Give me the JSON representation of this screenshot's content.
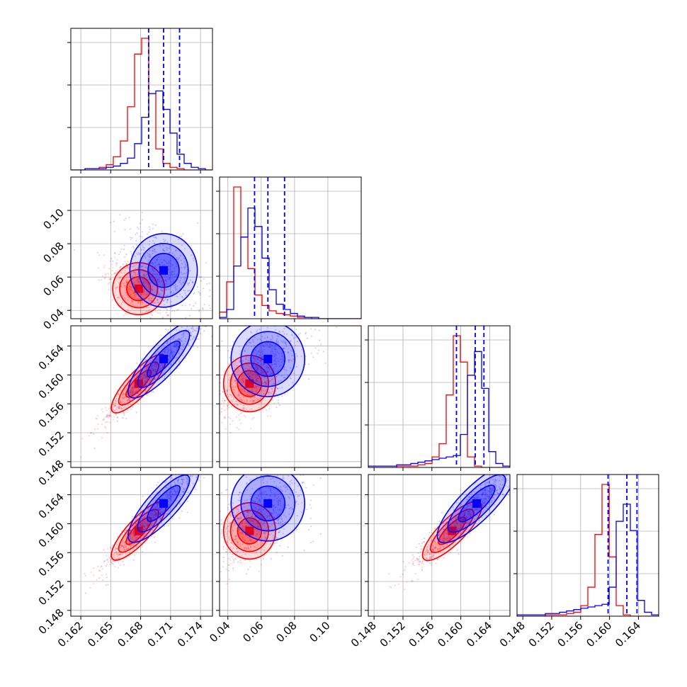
{
  "colors": {
    "red": "#ff0000",
    "blue": "#0000ff",
    "grid": "#b0b0b0"
  },
  "chart_data": {
    "type": "corner",
    "grid": true,
    "parameters": [
      {
        "ticks": [
          0.162,
          0.165,
          0.168,
          0.171,
          0.174
        ],
        "tick_labels": [
          "0.162",
          "0.165",
          "0.168",
          "0.171",
          "0.174"
        ],
        "range": [
          0.161,
          0.1752
        ]
      },
      {
        "ticks": [
          0.04,
          0.06,
          0.08,
          0.1
        ],
        "tick_labels": [
          "0.04",
          "0.06",
          "0.08",
          "0.10"
        ],
        "range": [
          0.035,
          0.12
        ]
      },
      {
        "ticks": [
          0.148,
          0.152,
          0.156,
          0.16,
          0.164
        ],
        "tick_labels": [
          "0.148",
          "0.152",
          "0.156",
          "0.160",
          "0.164"
        ],
        "range": [
          0.1472,
          0.1668
        ]
      },
      {
        "ticks": [
          0.148,
          0.152,
          0.156,
          0.16,
          0.164
        ],
        "tick_labels": [
          "0.148",
          "0.152",
          "0.156",
          "0.160",
          "0.164"
        ],
        "range": [
          0.1472,
          0.1668
        ]
      }
    ],
    "series": [
      {
        "color": "red",
        "mean": [
          0.1678,
          0.053,
          0.1588,
          0.159
        ],
        "std": [
          0.001,
          0.006,
          0.0015,
          0.0015
        ],
        "quantiles_shown": false
      },
      {
        "color": "blue",
        "mean": [
          0.1703,
          0.064,
          0.1622,
          0.1628
        ],
        "std": [
          0.0013,
          0.0085,
          0.002,
          0.002
        ],
        "quantiles_shown": true
      }
    ],
    "quantiles": [
      [
        0.1688,
        0.1703,
        0.1719
      ],
      [
        0.056,
        0.064,
        0.074
      ],
      [
        0.1594,
        0.162,
        0.1632
      ],
      [
        0.1598,
        0.1624,
        0.1638
      ]
    ],
    "histograms": [
      {
        "bins": [
          0.161,
          0.1752
        ],
        "red": [
          0,
          0,
          1,
          1,
          2,
          4,
          10,
          22,
          48,
          88,
          100,
          58,
          16,
          5,
          2,
          1,
          0,
          0,
          0,
          0
        ],
        "blue": [
          0,
          0,
          1,
          1,
          1,
          2,
          3,
          5,
          9,
          20,
          40,
          58,
          60,
          46,
          28,
          12,
          5,
          2,
          1,
          0
        ]
      },
      {
        "bins": [
          0.035,
          0.12
        ],
        "red": [
          5,
          28,
          100,
          62,
          38,
          18,
          10,
          6,
          4,
          3,
          2,
          1,
          1,
          0,
          0,
          0,
          0,
          0,
          0,
          0
        ],
        "blue": [
          1,
          7,
          40,
          62,
          84,
          70,
          46,
          22,
          11,
          7,
          4,
          2,
          1,
          1,
          0,
          0,
          0,
          0,
          0,
          0
        ]
      },
      {
        "bins": [
          0.1472,
          0.1668
        ],
        "red": [
          0,
          0,
          0,
          0,
          1,
          1,
          1,
          2,
          3,
          8,
          18,
          55,
          100,
          80,
          8,
          1,
          0,
          0,
          0,
          0
        ],
        "blue": [
          1,
          1,
          1,
          1,
          2,
          2,
          3,
          4,
          5,
          6,
          7,
          8,
          9,
          25,
          70,
          88,
          60,
          12,
          3,
          1
        ]
      },
      {
        "bins": [
          0.1472,
          0.1668
        ],
        "red": [
          0,
          0,
          0,
          0,
          1,
          1,
          1,
          2,
          3,
          8,
          22,
          62,
          100,
          45,
          8,
          1,
          0,
          0,
          0,
          0
        ],
        "blue": [
          1,
          1,
          1,
          1,
          2,
          2,
          3,
          4,
          5,
          6,
          7,
          8,
          9,
          22,
          72,
          85,
          65,
          12,
          3,
          1
        ]
      }
    ]
  }
}
